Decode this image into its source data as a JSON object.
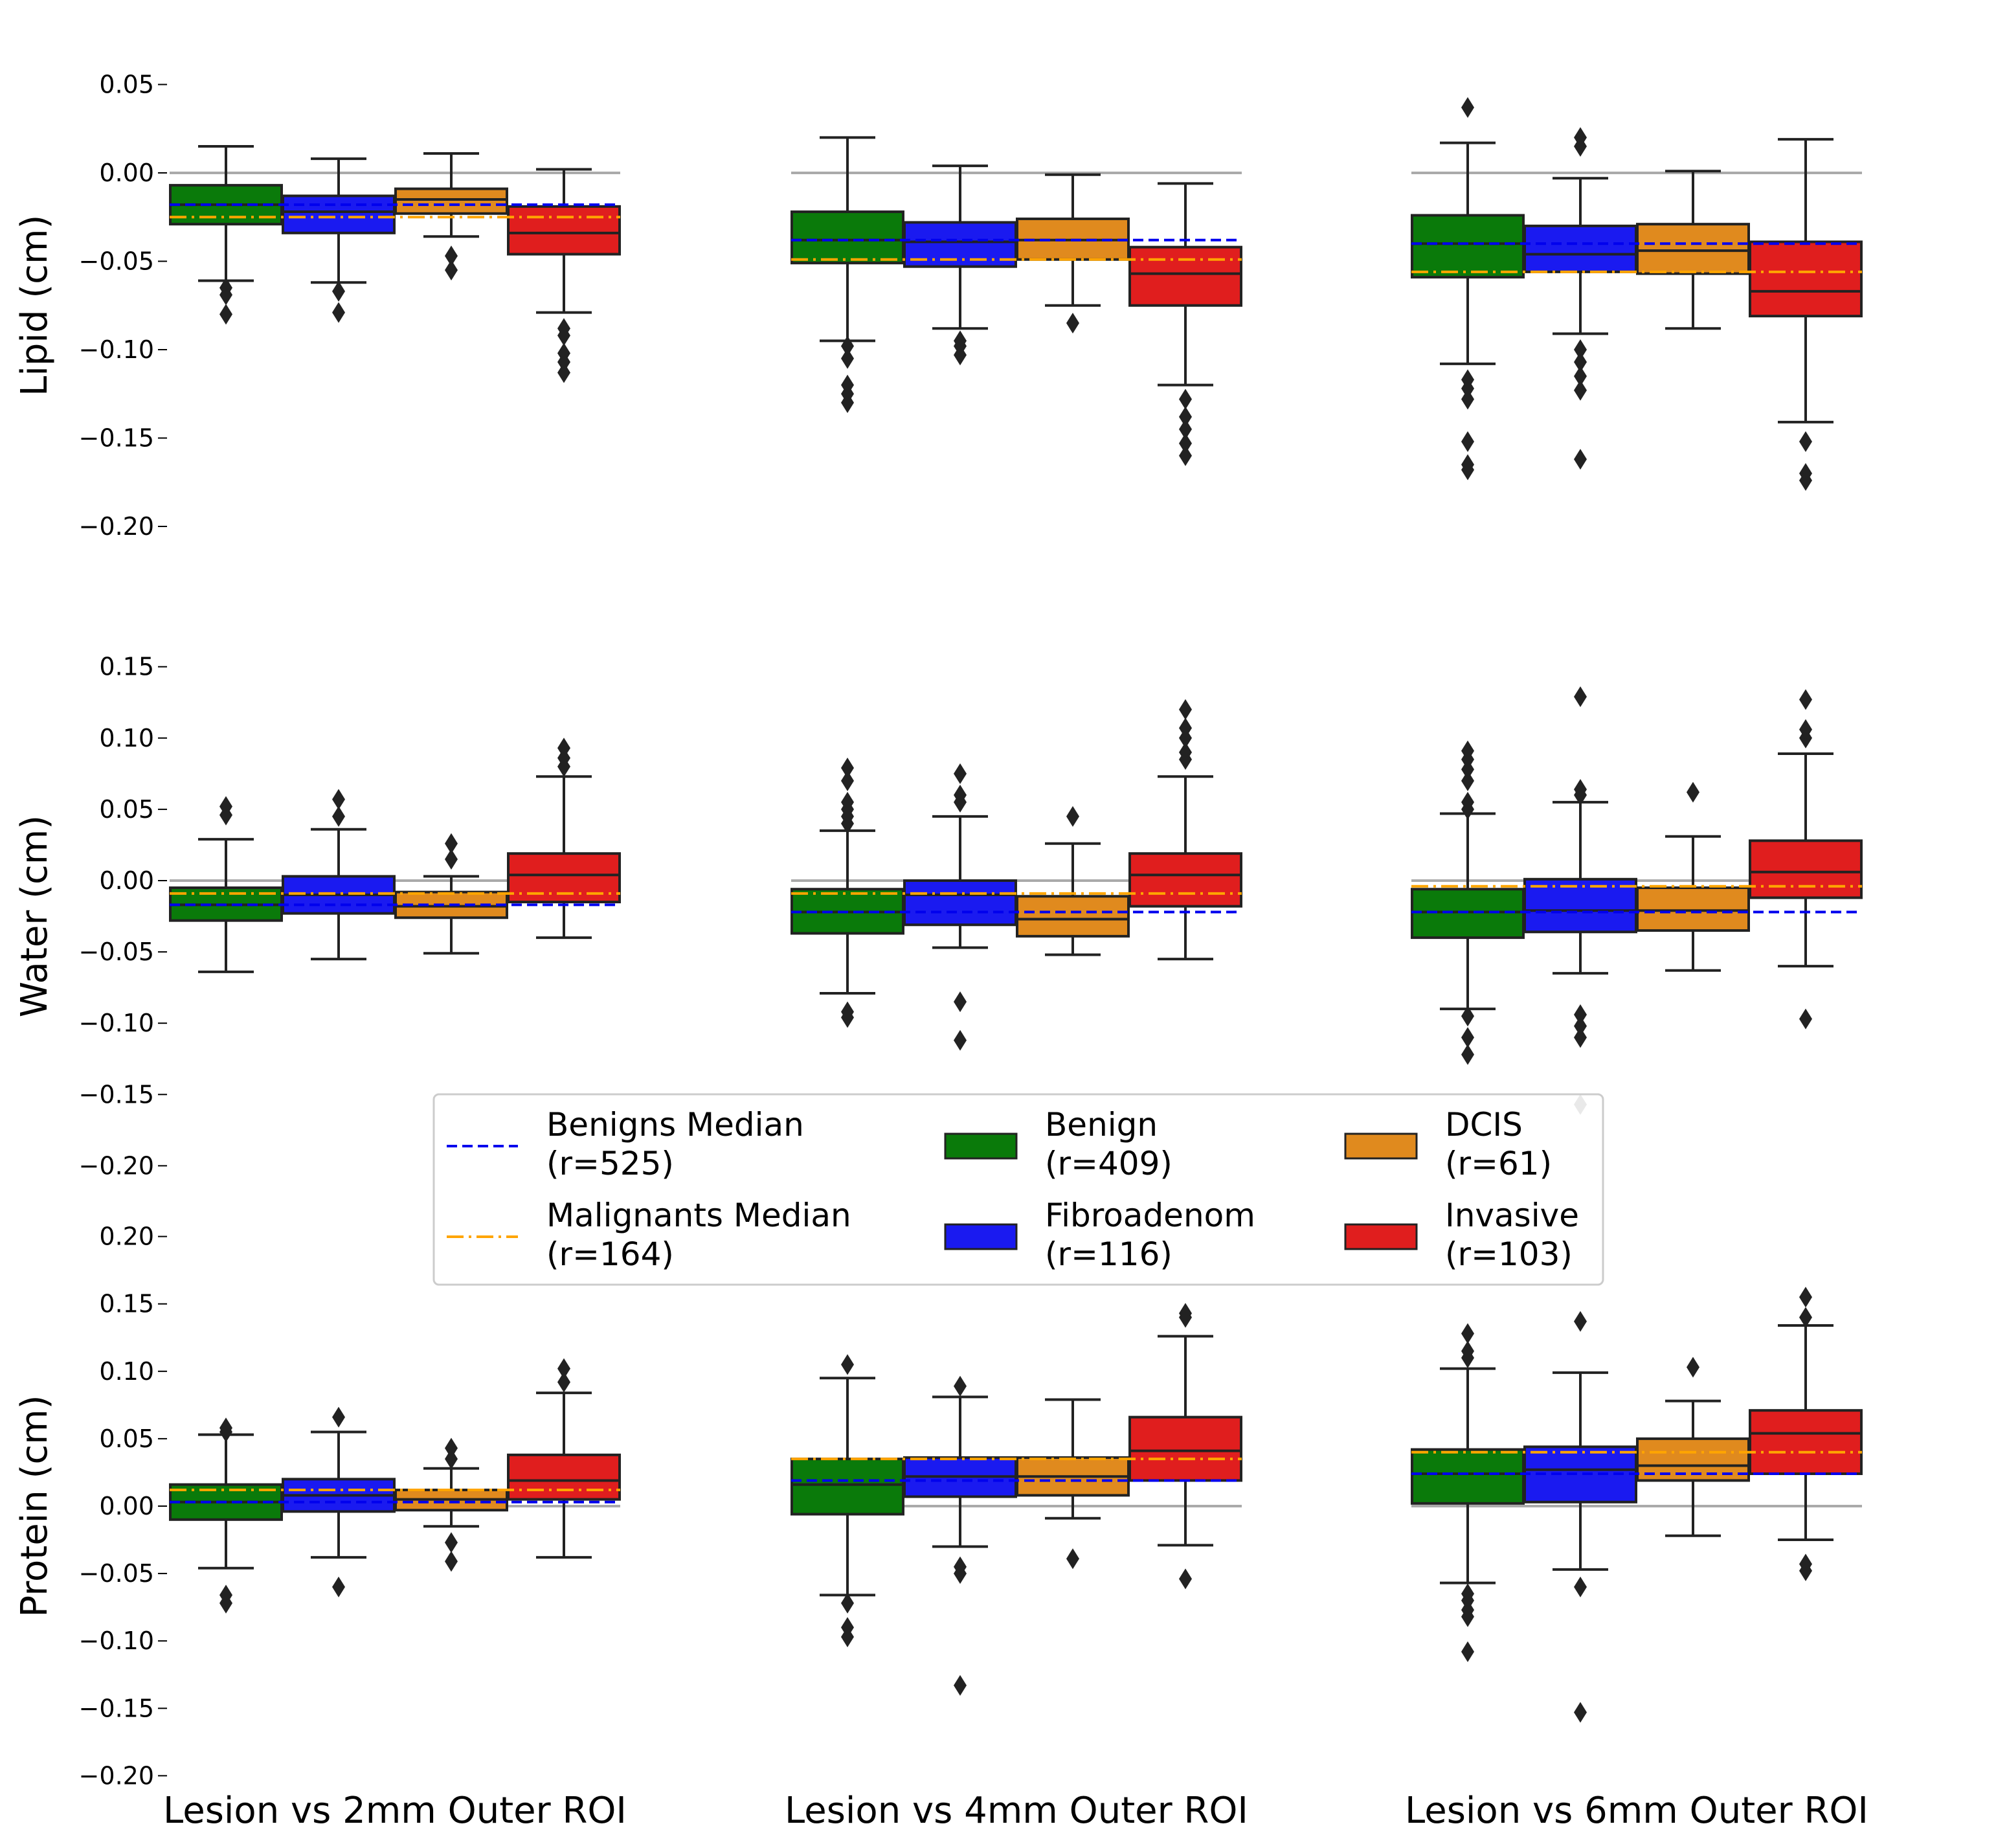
{
  "chart_data": {
    "type": "box",
    "groups": [
      "Benign",
      "Fibroadenom",
      "DCIS",
      "Invasive"
    ],
    "group_colors": [
      "#0a7a0a",
      "#1a1af0",
      "#e08a1e",
      "#e01e1e"
    ],
    "columns": [
      "Lesion vs 2mm Outer ROI",
      "Lesion vs 4mm Outer ROI",
      "Lesion vs 6mm Outer ROI"
    ],
    "rows": [
      {
        "ylabel": "Lipid (cm)",
        "ticks": [
          "0.05",
          "0.00",
          "−0.05",
          "−0.10",
          "−0.15",
          "−0.20"
        ],
        "tick_values": [
          0.05,
          0.0,
          -0.05,
          -0.1,
          -0.15,
          -0.2
        ],
        "ylim": [
          -0.2,
          0.05
        ],
        "panels": [
          {
            "benign_median": -0.018,
            "malignant_median": -0.025,
            "boxes": [
              {
                "whislo": -0.061,
                "q1": -0.029,
                "med": -0.018,
                "q3": -0.007,
                "whishi": 0.015,
                "fliers": [
                  -0.065,
                  -0.069,
                  -0.08
                ]
              },
              {
                "whislo": -0.062,
                "q1": -0.034,
                "med": -0.022,
                "q3": -0.013,
                "whishi": 0.008,
                "fliers": [
                  -0.067,
                  -0.079
                ]
              },
              {
                "whislo": -0.036,
                "q1": -0.023,
                "med": -0.015,
                "q3": -0.009,
                "whishi": 0.011,
                "fliers": [
                  -0.047,
                  -0.055
                ]
              },
              {
                "whislo": -0.079,
                "q1": -0.046,
                "med": -0.034,
                "q3": -0.019,
                "whishi": 0.002,
                "fliers": [
                  -0.088,
                  -0.092,
                  -0.102,
                  -0.107,
                  -0.113
                ]
              }
            ]
          },
          {
            "benign_median": -0.038,
            "malignant_median": -0.049,
            "boxes": [
              {
                "whislo": -0.095,
                "q1": -0.051,
                "med": -0.038,
                "q3": -0.022,
                "whishi": 0.02,
                "fliers": [
                  -0.098,
                  -0.105,
                  -0.12,
                  -0.125,
                  -0.13
                ]
              },
              {
                "whislo": -0.088,
                "q1": -0.053,
                "med": -0.039,
                "q3": -0.028,
                "whishi": 0.004,
                "fliers": [
                  -0.095,
                  -0.098,
                  -0.103
                ]
              },
              {
                "whislo": -0.075,
                "q1": -0.049,
                "med": -0.038,
                "q3": -0.026,
                "whishi": -0.001,
                "fliers": [
                  -0.085
                ]
              },
              {
                "whislo": -0.12,
                "q1": -0.075,
                "med": -0.057,
                "q3": -0.042,
                "whishi": -0.006,
                "fliers": [
                  -0.128,
                  -0.138,
                  -0.145,
                  -0.153,
                  -0.16
                ]
              }
            ]
          },
          {
            "benign_median": -0.04,
            "malignant_median": -0.056,
            "boxes": [
              {
                "whislo": -0.108,
                "q1": -0.059,
                "med": -0.04,
                "q3": -0.024,
                "whishi": 0.017,
                "fliers": [
                  0.037,
                  -0.117,
                  -0.122,
                  -0.128,
                  -0.152,
                  -0.165,
                  -0.168
                ]
              },
              {
                "whislo": -0.091,
                "q1": -0.056,
                "med": -0.046,
                "q3": -0.03,
                "whishi": -0.003,
                "fliers": [
                  0.02,
                  0.015,
                  -0.1,
                  -0.107,
                  -0.115,
                  -0.123,
                  -0.162
                ]
              },
              {
                "whislo": -0.088,
                "q1": -0.057,
                "med": -0.044,
                "q3": -0.029,
                "whishi": 0.001,
                "fliers": []
              },
              {
                "whislo": -0.141,
                "q1": -0.081,
                "med": -0.067,
                "q3": -0.039,
                "whishi": 0.019,
                "fliers": [
                  -0.152,
                  -0.17,
                  -0.174
                ]
              }
            ]
          }
        ]
      },
      {
        "ylabel": "Water (cm)",
        "ticks": [
          "0.15",
          "0.10",
          "0.05",
          "0.00",
          "−0.05",
          "−0.10",
          "−0.15",
          "−0.20"
        ],
        "tick_values": [
          0.15,
          0.1,
          0.05,
          0.0,
          -0.05,
          -0.1,
          -0.15,
          -0.2
        ],
        "ylim": [
          -0.2,
          0.15
        ],
        "panels": [
          {
            "benign_median": -0.017,
            "malignant_median": -0.009,
            "boxes": [
              {
                "whislo": -0.064,
                "q1": -0.028,
                "med": -0.017,
                "q3": -0.005,
                "whishi": 0.029,
                "fliers": [
                  0.046,
                  0.052
                ]
              },
              {
                "whislo": -0.055,
                "q1": -0.023,
                "med": -0.01,
                "q3": 0.003,
                "whishi": 0.036,
                "fliers": [
                  0.045,
                  0.057
                ]
              },
              {
                "whislo": -0.051,
                "q1": -0.026,
                "med": -0.018,
                "q3": -0.008,
                "whishi": 0.003,
                "fliers": [
                  0.015,
                  0.026
                ]
              },
              {
                "whislo": -0.04,
                "q1": -0.015,
                "med": 0.004,
                "q3": 0.019,
                "whishi": 0.073,
                "fliers": [
                  0.08,
                  0.086,
                  0.093
                ]
              }
            ]
          },
          {
            "benign_median": -0.022,
            "malignant_median": -0.009,
            "boxes": [
              {
                "whislo": -0.079,
                "q1": -0.037,
                "med": -0.022,
                "q3": -0.006,
                "whishi": 0.035,
                "fliers": [
                  0.04,
                  0.045,
                  0.05,
                  0.055,
                  0.07,
                  0.079,
                  -0.092,
                  -0.096
                ]
              },
              {
                "whislo": -0.047,
                "q1": -0.031,
                "med": -0.01,
                "q3": 0.0,
                "whishi": 0.045,
                "fliers": [
                  0.055,
                  0.06,
                  0.075,
                  -0.085,
                  -0.112
                ]
              },
              {
                "whislo": -0.052,
                "q1": -0.039,
                "med": -0.027,
                "q3": -0.011,
                "whishi": 0.026,
                "fliers": [
                  0.045
                ]
              },
              {
                "whislo": -0.055,
                "q1": -0.018,
                "med": 0.004,
                "q3": 0.019,
                "whishi": 0.073,
                "fliers": [
                  0.085,
                  0.09,
                  0.1,
                  0.107,
                  0.12
                ]
              }
            ]
          },
          {
            "benign_median": -0.022,
            "malignant_median": -0.004,
            "boxes": [
              {
                "whislo": -0.09,
                "q1": -0.04,
                "med": -0.022,
                "q3": -0.006,
                "whishi": 0.047,
                "fliers": [
                  0.05,
                  0.055,
                  0.07,
                  0.078,
                  0.085,
                  0.091,
                  -0.095,
                  -0.11,
                  -0.122
                ]
              },
              {
                "whislo": -0.065,
                "q1": -0.036,
                "med": -0.021,
                "q3": 0.001,
                "whishi": 0.055,
                "fliers": [
                  0.06,
                  0.064,
                  0.129,
                  -0.094,
                  -0.102,
                  -0.11,
                  -0.157
                ]
              },
              {
                "whislo": -0.063,
                "q1": -0.035,
                "med": -0.021,
                "q3": -0.005,
                "whishi": 0.031,
                "fliers": [
                  0.062
                ]
              },
              {
                "whislo": -0.06,
                "q1": -0.012,
                "med": 0.006,
                "q3": 0.028,
                "whishi": 0.089,
                "fliers": [
                  0.1,
                  0.106,
                  0.127,
                  -0.097
                ]
              }
            ]
          }
        ]
      },
      {
        "ylabel": "Protein (cm)",
        "ticks": [
          "0.20",
          "0.15",
          "0.10",
          "0.05",
          "0.00",
          "−0.05",
          "−0.10",
          "−0.15",
          "−0.20"
        ],
        "tick_values": [
          0.2,
          0.15,
          0.1,
          0.05,
          0.0,
          -0.05,
          -0.1,
          -0.15,
          -0.2
        ],
        "ylim": [
          -0.2,
          0.2
        ],
        "panels": [
          {
            "benign_median": 0.003,
            "malignant_median": 0.012,
            "boxes": [
              {
                "whislo": -0.046,
                "q1": -0.01,
                "med": 0.003,
                "q3": 0.016,
                "whishi": 0.053,
                "fliers": [
                  0.055,
                  0.058,
                  -0.066,
                  -0.072
                ]
              },
              {
                "whislo": -0.038,
                "q1": -0.004,
                "med": 0.008,
                "q3": 0.02,
                "whishi": 0.055,
                "fliers": [
                  0.066,
                  -0.06
                ]
              },
              {
                "whislo": -0.015,
                "q1": -0.003,
                "med": 0.005,
                "q3": 0.012,
                "whishi": 0.028,
                "fliers": [
                  0.035,
                  0.043,
                  -0.027,
                  -0.041
                ]
              },
              {
                "whislo": -0.038,
                "q1": 0.005,
                "med": 0.019,
                "q3": 0.038,
                "whishi": 0.084,
                "fliers": [
                  0.092,
                  0.102
                ]
              }
            ]
          },
          {
            "benign_median": 0.019,
            "malignant_median": 0.035,
            "boxes": [
              {
                "whislo": -0.066,
                "q1": -0.006,
                "med": 0.016,
                "q3": 0.035,
                "whishi": 0.095,
                "fliers": [
                  0.105,
                  -0.072,
                  -0.09,
                  -0.097
                ]
              },
              {
                "whislo": -0.03,
                "q1": 0.007,
                "med": 0.022,
                "q3": 0.036,
                "whishi": 0.081,
                "fliers": [
                  0.089,
                  -0.045,
                  -0.05,
                  -0.133
                ]
              },
              {
                "whislo": -0.009,
                "q1": 0.008,
                "med": 0.022,
                "q3": 0.036,
                "whishi": 0.079,
                "fliers": [
                  -0.039
                ]
              },
              {
                "whislo": -0.029,
                "q1": 0.019,
                "med": 0.041,
                "q3": 0.066,
                "whishi": 0.126,
                "fliers": [
                  0.14,
                  0.143,
                  -0.054
                ]
              }
            ]
          },
          {
            "benign_median": 0.024,
            "malignant_median": 0.04,
            "boxes": [
              {
                "whislo": -0.057,
                "q1": 0.002,
                "med": 0.024,
                "q3": 0.042,
                "whishi": 0.102,
                "fliers": [
                  0.11,
                  0.115,
                  0.128,
                  -0.065,
                  -0.07,
                  -0.077,
                  -0.082,
                  -0.108
                ]
              },
              {
                "whislo": -0.047,
                "q1": 0.003,
                "med": 0.027,
                "q3": 0.044,
                "whishi": 0.099,
                "fliers": [
                  0.137,
                  -0.06,
                  -0.153
                ]
              },
              {
                "whislo": -0.022,
                "q1": 0.019,
                "med": 0.03,
                "q3": 0.05,
                "whishi": 0.078,
                "fliers": [
                  0.103
                ]
              },
              {
                "whislo": -0.025,
                "q1": 0.024,
                "med": 0.054,
                "q3": 0.071,
                "whishi": 0.134,
                "fliers": [
                  0.14,
                  0.155,
                  -0.043,
                  -0.048
                ]
              }
            ]
          }
        ]
      }
    ],
    "legend": {
      "placement": "lower-center",
      "entries": [
        {
          "label": "Benigns Median",
          "count": "(r=525)",
          "kind": "dashed",
          "color": "#0000ee"
        },
        {
          "label": "Malignants Median",
          "count": "(r=164)",
          "kind": "dashdot",
          "color": "#ffa500"
        },
        {
          "label": "Benign",
          "count": "(r=409)",
          "kind": "patch",
          "color": "#0a7a0a"
        },
        {
          "label": "Fibroadenom",
          "count": "(r=116)",
          "kind": "patch",
          "color": "#1a1af0"
        },
        {
          "label": "DCIS",
          "count": "(r=61)",
          "kind": "patch",
          "color": "#e08a1e"
        },
        {
          "label": "Invasive",
          "count": "(r=103)",
          "kind": "patch",
          "color": "#e01e1e"
        }
      ]
    },
    "grid": false
  }
}
